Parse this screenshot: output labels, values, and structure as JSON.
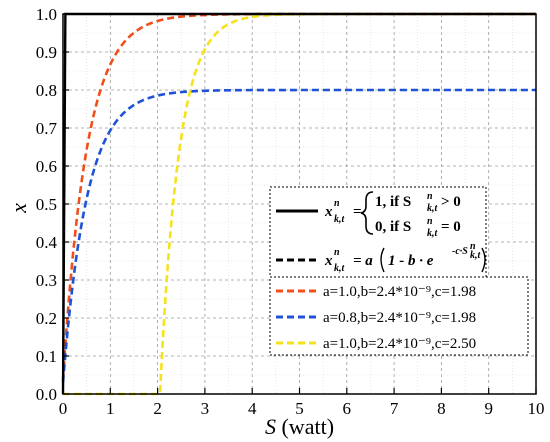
{
  "chart_data": {
    "type": "line",
    "xlabel": {
      "var": "S",
      "unit": " (watt)"
    },
    "ylabel": "x",
    "xlim": [
      0,
      10
    ],
    "ylim": [
      0,
      1.0
    ],
    "xticks": [
      "0",
      "1",
      "2",
      "3",
      "4",
      "5",
      "6",
      "7",
      "8",
      "9",
      "10"
    ],
    "yticks": [
      "0.0",
      "0.1",
      "0.2",
      "0.3",
      "0.4",
      "0.5",
      "0.6",
      "0.7",
      "0.8",
      "0.9",
      "1.0"
    ],
    "grid": true,
    "legend_position": "lower-right",
    "formula_box": {
      "step": {
        "lhs": "x",
        "sub": "k,t",
        "sup": "n",
        "case1": "1, if S",
        "case1_tail": " > 0",
        "case2": "0, if S",
        "case2_tail": " = 0"
      },
      "model": {
        "lhs": "x",
        "sub": "k,t",
        "sup": "n",
        "rhs_a": "= a",
        "rhs_body": "1 - b · e",
        "exp": "-c·S",
        "exp_sub": "k,t",
        "exp_sup": "n"
      }
    },
    "series": [
      {
        "label": "a=1.0,b=2.4*10⁻⁹,c=1.98",
        "a": 1.0,
        "b": 2.4e-09,
        "c": 1.98,
        "color": "#f04e1c",
        "style": "dashed"
      },
      {
        "label": "a=0.8,b=2.4*10⁻⁹,c=1.98",
        "a": 0.8,
        "b": 2.4e-09,
        "c": 1.98,
        "color": "#1f52d6",
        "style": "dashed"
      },
      {
        "label": "a=1.0,b=2.4*10⁻⁹,c=2.50",
        "a": 1.0,
        "b": 2.4e-09,
        "c": 2.5,
        "color": "#f5e21c",
        "style": "dashed"
      }
    ],
    "step_series": {
      "color": "#000000",
      "style": "solid",
      "x_jump": 0,
      "y_high": 1.0
    }
  }
}
